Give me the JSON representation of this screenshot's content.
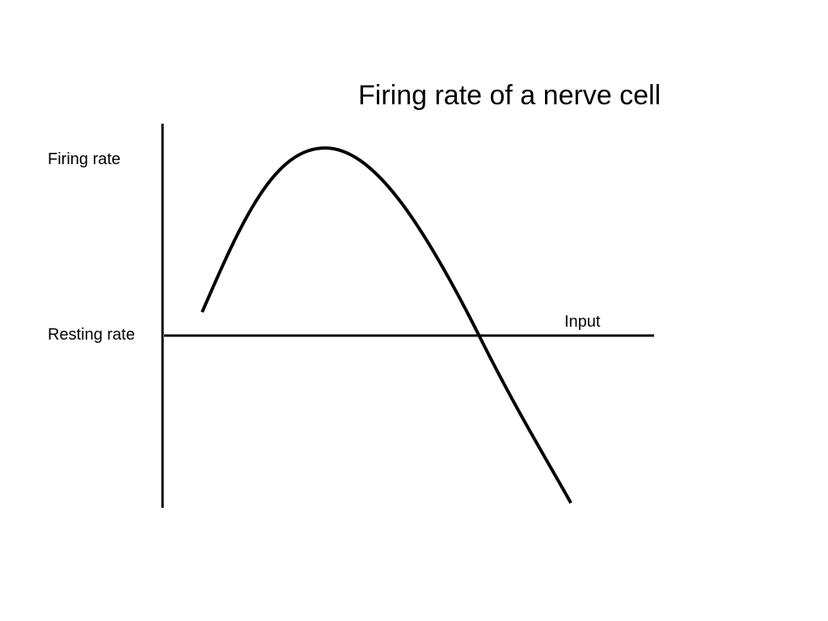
{
  "title": "Firing rate of a nerve cell",
  "labels": {
    "firing_rate": "Firing rate",
    "resting_rate": "Resting rate",
    "input": "Input"
  },
  "colors": {
    "line": "#000000",
    "background": "#ffffff"
  }
}
